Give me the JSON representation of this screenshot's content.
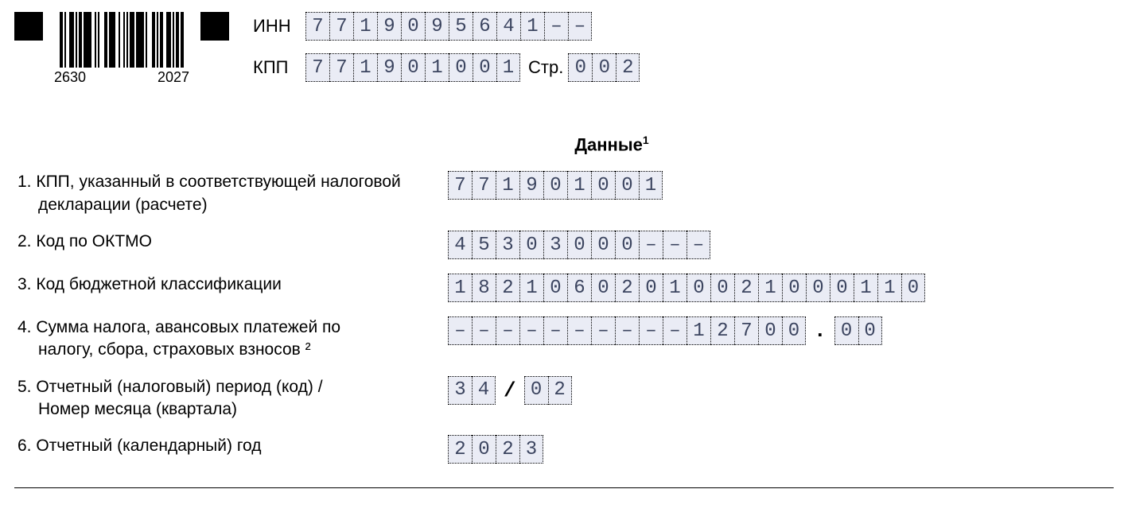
{
  "barcode": {
    "left_num": "2630",
    "right_num": "2027"
  },
  "header": {
    "inn_label": "ИНН",
    "kpp_label": "КПП",
    "page_label": "Стр.",
    "inn_cells": [
      "7",
      "7",
      "1",
      "9",
      "0",
      "9",
      "5",
      "6",
      "4",
      "1",
      "–",
      "–"
    ],
    "kpp_cells": [
      "7",
      "7",
      "1",
      "9",
      "0",
      "1",
      "0",
      "0",
      "1"
    ],
    "page_cells": [
      "0",
      "0",
      "2"
    ]
  },
  "section_title": "Данные",
  "section_title_sup": "1",
  "rows": {
    "r1": {
      "num": "1.",
      "label_a": "КПП, указанный в соответствующей налоговой",
      "label_b": "декларации (расчете)",
      "cells": [
        "7",
        "7",
        "1",
        "9",
        "0",
        "1",
        "0",
        "0",
        "1"
      ]
    },
    "r2": {
      "num": "2.",
      "label": "Код по ОКТМО",
      "cells": [
        "4",
        "5",
        "3",
        "0",
        "3",
        "0",
        "0",
        "0",
        "–",
        "–",
        "–"
      ]
    },
    "r3": {
      "num": "3.",
      "label": "Код бюджетной классификации",
      "cells": [
        "1",
        "8",
        "2",
        "1",
        "0",
        "6",
        "0",
        "2",
        "0",
        "1",
        "0",
        "0",
        "2",
        "1",
        "0",
        "0",
        "0",
        "1",
        "1",
        "0"
      ]
    },
    "r4": {
      "num": "4.",
      "label_a": "Сумма налога, авансовых платежей по",
      "label_b": "налогу, сбора, страховых взносов ²",
      "int_cells": [
        "–",
        "–",
        "–",
        "–",
        "–",
        "–",
        "–",
        "–",
        "–",
        "–",
        "1",
        "2",
        "7",
        "0",
        "0"
      ],
      "dot": ".",
      "dec_cells": [
        "0",
        "0"
      ]
    },
    "r5": {
      "num": "5.",
      "label_a": "Отчетный (налоговый) период (код) /",
      "label_b": "Номер месяца (квартала)",
      "cells_a": [
        "3",
        "4"
      ],
      "slash": "/",
      "cells_b": [
        "0",
        "2"
      ]
    },
    "r6": {
      "num": "6.",
      "label": "Отчетный (календарный) год",
      "cells": [
        "2",
        "0",
        "2",
        "3"
      ]
    }
  },
  "style": {
    "cell_bg": "#eaecf5",
    "cell_text": "#3c4560",
    "cell_border": "#000000",
    "page_bg": "#ffffff"
  }
}
